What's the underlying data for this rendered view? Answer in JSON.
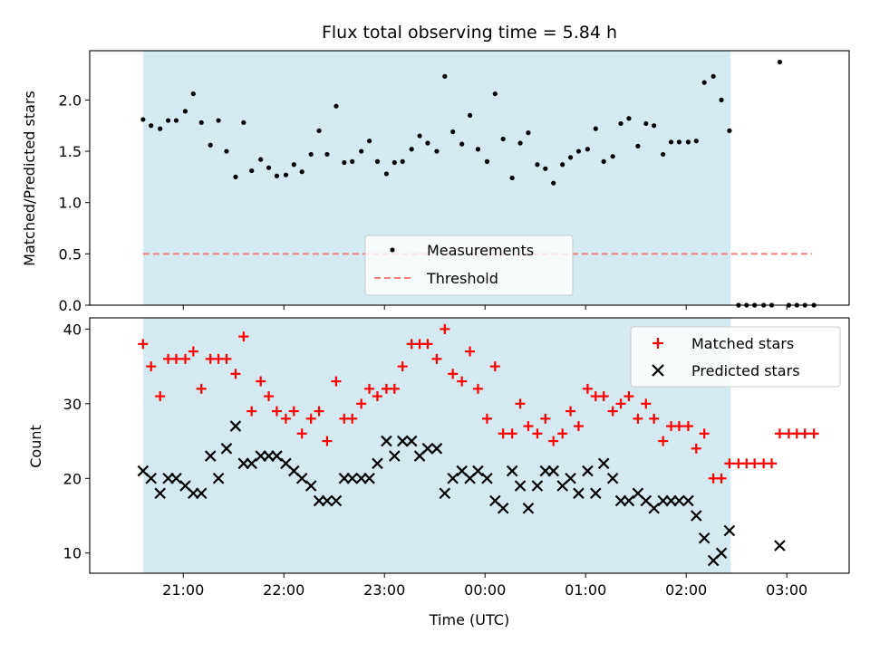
{
  "chart_data": [
    {
      "type": "scatter",
      "title": "Flux total observing time = 5.84 h",
      "ylabel": "Matched/Predicted stars",
      "xlabel": "",
      "ylim": [
        0,
        2.48
      ],
      "yticks": [
        "0.0",
        "0.5",
        "1.0",
        "1.5",
        "2.0"
      ],
      "ytick_values": [
        0,
        0.5,
        1.0,
        1.5,
        2.0
      ],
      "shaded_interval_hours": [
        20.6,
        26.44
      ],
      "shade_color": "#d4eaf0",
      "legend": {
        "placement": "lower-center",
        "entries": [
          "Measurements",
          "Threshold"
        ]
      },
      "threshold": {
        "name": "Threshold",
        "value": 0.5,
        "x_range": [
          20.6,
          27.25
        ],
        "color": "#f08080"
      },
      "series": [
        {
          "name": "Measurements",
          "color": "#000000",
          "x_hours": [
            20.6,
            20.68,
            20.77,
            20.85,
            20.93,
            21.02,
            21.1,
            21.18,
            21.27,
            21.35,
            21.43,
            21.52,
            21.6,
            21.68,
            21.77,
            21.85,
            21.93,
            22.02,
            22.1,
            22.18,
            22.27,
            22.35,
            22.43,
            22.52,
            22.6,
            22.68,
            22.77,
            22.85,
            22.93,
            23.02,
            23.1,
            23.18,
            23.27,
            23.35,
            23.43,
            23.52,
            23.6,
            23.68,
            23.77,
            23.85,
            23.93,
            24.02,
            24.1,
            24.18,
            24.27,
            24.35,
            24.43,
            24.52,
            24.6,
            24.68,
            24.77,
            24.85,
            24.93,
            25.02,
            25.1,
            25.18,
            25.27,
            25.35,
            25.43,
            25.52,
            25.6,
            25.68,
            25.77,
            25.85,
            25.93,
            26.02,
            26.1,
            26.18,
            26.27,
            26.35,
            26.43,
            26.52,
            26.6,
            26.68,
            26.77,
            26.85,
            26.93,
            27.02,
            27.1,
            27.18,
            27.27
          ],
          "y": [
            1.81,
            1.75,
            1.72,
            1.8,
            1.8,
            1.89,
            2.06,
            1.78,
            1.56,
            1.8,
            1.5,
            1.25,
            1.78,
            1.31,
            1.42,
            1.34,
            1.26,
            1.27,
            1.37,
            1.3,
            1.47,
            1.7,
            1.47,
            1.94,
            1.39,
            1.4,
            1.5,
            1.6,
            1.4,
            1.28,
            1.39,
            1.4,
            1.52,
            1.65,
            1.58,
            1.5,
            2.23,
            1.69,
            1.57,
            1.85,
            1.52,
            1.4,
            2.06,
            1.62,
            1.24,
            1.58,
            1.68,
            1.37,
            1.33,
            1.19,
            1.37,
            1.44,
            1.5,
            1.52,
            1.72,
            1.4,
            1.45,
            1.77,
            1.82,
            1.55,
            1.77,
            1.75,
            1.47,
            1.59,
            1.59,
            1.59,
            1.6,
            2.17,
            2.23,
            2.0,
            1.7,
            0.0,
            0.0,
            0.0,
            0.0,
            0.0,
            2.37,
            0.0,
            0.0,
            0.0,
            0.0
          ]
        }
      ]
    },
    {
      "type": "scatter",
      "title": "",
      "xlabel": "Time (UTC)",
      "ylabel": "Count",
      "ylim": [
        7.3,
        41.5
      ],
      "yticks": [
        "10",
        "20",
        "30",
        "40"
      ],
      "ytick_values": [
        10,
        20,
        30,
        40
      ],
      "xlim_hours": [
        20.07,
        27.62
      ],
      "xticks": [
        "21:00",
        "22:00",
        "23:00",
        "00:00",
        "01:00",
        "02:00",
        "03:00"
      ],
      "xtick_values_hours": [
        21,
        22,
        23,
        24,
        25,
        26,
        27
      ],
      "shaded_interval_hours": [
        20.6,
        26.44
      ],
      "legend": {
        "placement": "upper-right",
        "entries": [
          "Matched stars",
          "Predicted stars"
        ]
      },
      "series": [
        {
          "name": "Matched stars",
          "marker": "plus",
          "color": "#ff0000",
          "x_hours": [
            20.6,
            20.68,
            20.77,
            20.85,
            20.93,
            21.02,
            21.1,
            21.18,
            21.27,
            21.35,
            21.43,
            21.52,
            21.6,
            21.68,
            21.77,
            21.85,
            21.93,
            22.02,
            22.1,
            22.18,
            22.27,
            22.35,
            22.43,
            22.52,
            22.6,
            22.68,
            22.77,
            22.85,
            22.93,
            23.02,
            23.1,
            23.18,
            23.27,
            23.35,
            23.43,
            23.52,
            23.6,
            23.68,
            23.77,
            23.85,
            23.93,
            24.02,
            24.1,
            24.18,
            24.27,
            24.35,
            24.43,
            24.52,
            24.6,
            24.68,
            24.77,
            24.85,
            24.93,
            25.02,
            25.1,
            25.18,
            25.27,
            25.35,
            25.43,
            25.52,
            25.6,
            25.68,
            25.77,
            25.85,
            25.93,
            26.02,
            26.1,
            26.18,
            26.27,
            26.35,
            26.43,
            26.52,
            26.6,
            26.68,
            26.77,
            26.85,
            26.93,
            27.02,
            27.1,
            27.18,
            27.27
          ],
          "y": [
            38,
            35,
            31,
            36,
            36,
            36,
            37,
            32,
            36,
            36,
            36,
            34,
            39,
            29,
            33,
            31,
            29,
            28,
            29,
            26,
            28,
            29,
            25,
            33,
            28,
            28,
            30,
            32,
            31,
            32,
            32,
            35,
            38,
            38,
            38,
            36,
            40,
            34,
            33,
            37,
            32,
            28,
            35,
            26,
            26,
            30,
            27,
            26,
            28,
            25,
            26,
            29,
            27,
            32,
            31,
            31,
            29,
            30,
            31,
            28,
            30,
            28,
            25,
            27,
            27,
            27,
            24,
            26,
            20,
            20,
            22,
            22,
            22,
            22,
            22,
            22,
            26,
            26,
            26,
            26,
            26
          ]
        },
        {
          "name": "Predicted stars",
          "marker": "x",
          "color": "#000000",
          "x_hours": [
            20.6,
            20.68,
            20.77,
            20.85,
            20.93,
            21.02,
            21.1,
            21.18,
            21.27,
            21.35,
            21.43,
            21.52,
            21.6,
            21.68,
            21.77,
            21.85,
            21.93,
            22.02,
            22.1,
            22.18,
            22.27,
            22.35,
            22.43,
            22.52,
            22.6,
            22.68,
            22.77,
            22.85,
            22.93,
            23.02,
            23.1,
            23.18,
            23.27,
            23.35,
            23.43,
            23.52,
            23.6,
            23.68,
            23.77,
            23.85,
            23.93,
            24.02,
            24.1,
            24.18,
            24.27,
            24.35,
            24.43,
            24.52,
            24.6,
            24.68,
            24.77,
            24.85,
            24.93,
            25.02,
            25.1,
            25.18,
            25.27,
            25.35,
            25.43,
            25.52,
            25.6,
            25.68,
            25.77,
            25.85,
            25.93,
            26.02,
            26.1,
            26.18,
            26.27,
            26.35,
            26.43,
            26.93
          ],
          "y": [
            21,
            20,
            18,
            20,
            20,
            19,
            18,
            18,
            23,
            20,
            24,
            27,
            22,
            22,
            23,
            23,
            23,
            22,
            21,
            20,
            19,
            17,
            17,
            17,
            20,
            20,
            20,
            20,
            22,
            25,
            23,
            25,
            25,
            23,
            24,
            24,
            18,
            20,
            21,
            20,
            21,
            20,
            17,
            16,
            21,
            19,
            16,
            19,
            21,
            21,
            19,
            20,
            18,
            21,
            18,
            22,
            20,
            17,
            17,
            18,
            17,
            16,
            17,
            17,
            17,
            17,
            15,
            12,
            9,
            10,
            13,
            11
          ]
        }
      ]
    }
  ]
}
